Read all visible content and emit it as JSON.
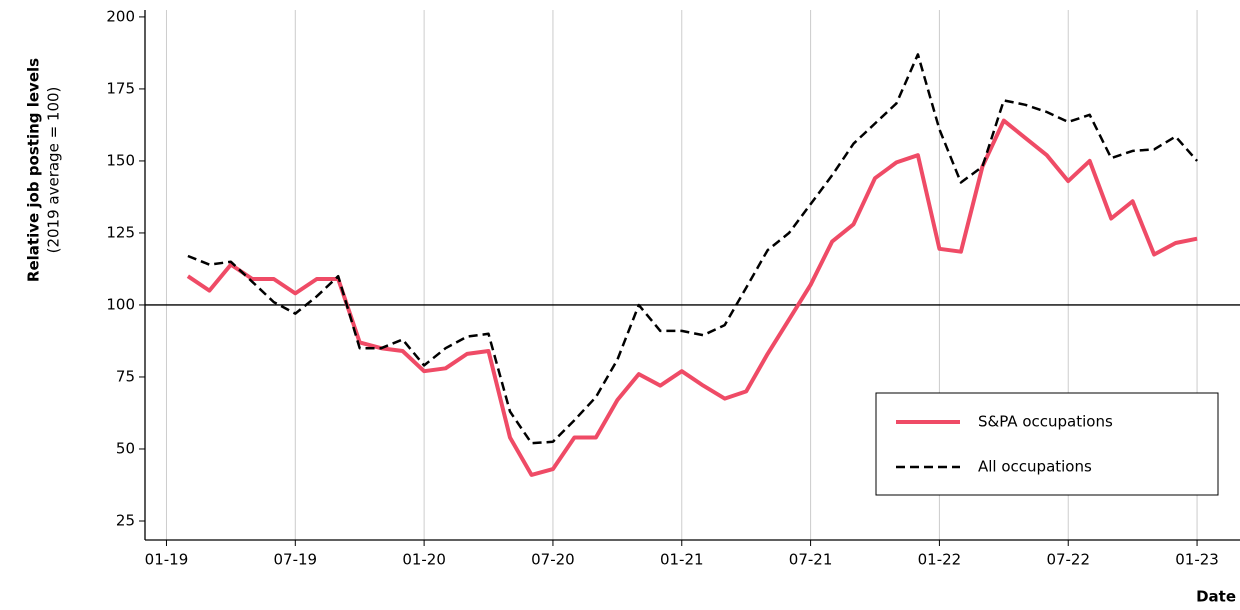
{
  "chart_data": {
    "type": "line",
    "y_label": "Relative job posting levels",
    "y_label_note": "(2019 average = 100)",
    "x_label": "Date",
    "x": [
      "2019-02",
      "2019-03",
      "2019-04",
      "2019-05",
      "2019-06",
      "2019-07",
      "2019-08",
      "2019-09",
      "2019-10",
      "2019-11",
      "2019-12",
      "2020-01",
      "2020-02",
      "2020-03",
      "2020-04",
      "2020-05",
      "2020-06",
      "2020-07",
      "2020-08",
      "2020-09",
      "2020-10",
      "2020-11",
      "2020-12",
      "2021-01",
      "2021-02",
      "2021-03",
      "2021-04",
      "2021-05",
      "2021-06",
      "2021-07",
      "2021-08",
      "2021-09",
      "2021-10",
      "2021-11",
      "2021-12",
      "2022-01",
      "2022-02",
      "2022-03",
      "2022-04",
      "2022-05",
      "2022-06",
      "2022-07",
      "2022-08",
      "2022-09",
      "2022-10",
      "2022-11",
      "2022-12",
      "2023-01"
    ],
    "series": [
      {
        "name": "S&PA occupations",
        "color": "#ef4b66",
        "style": "solid",
        "values": [
          110,
          105,
          114,
          109,
          109,
          104,
          109,
          109,
          87,
          85,
          84,
          77,
          78,
          83,
          84,
          54,
          41,
          43,
          54,
          54,
          67,
          76,
          72,
          77,
          72,
          67.5,
          70,
          83,
          95,
          107,
          122,
          128,
          144,
          149.5,
          152,
          119.5,
          118.5,
          148,
          164,
          158,
          152,
          143,
          150,
          130,
          136,
          117.5,
          121.5,
          123
        ]
      },
      {
        "name": "All occupations",
        "color": "#000000",
        "style": "dashed",
        "values": [
          117,
          114,
          115,
          108,
          101,
          97,
          103,
          110,
          85,
          85,
          88,
          79,
          85,
          89,
          90,
          63,
          52,
          52.5,
          60,
          68,
          81,
          100,
          91,
          91,
          89.5,
          93,
          106,
          119,
          125,
          135,
          145,
          156,
          163,
          170,
          187,
          161,
          142.5,
          148,
          171,
          169.5,
          167,
          163.5,
          166,
          151,
          153.5,
          154,
          158.5,
          150
        ]
      }
    ],
    "xlim": [
      "2018-12",
      "2023-03"
    ],
    "xticks": [
      {
        "value": "2019-01",
        "label": "01-19"
      },
      {
        "value": "2019-07",
        "label": "07-19"
      },
      {
        "value": "2020-01",
        "label": "01-20"
      },
      {
        "value": "2020-07",
        "label": "07-20"
      },
      {
        "value": "2021-01",
        "label": "01-21"
      },
      {
        "value": "2021-07",
        "label": "07-21"
      },
      {
        "value": "2022-01",
        "label": "01-22"
      },
      {
        "value": "2022-07",
        "label": "07-22"
      },
      {
        "value": "2023-01",
        "label": "01-23"
      }
    ],
    "ylim": [
      18.4,
      202.4
    ],
    "yticks": [
      25,
      50,
      75,
      100,
      125,
      150,
      175,
      200
    ],
    "reference_line": 100,
    "grid": "x",
    "legend": "lower right"
  }
}
